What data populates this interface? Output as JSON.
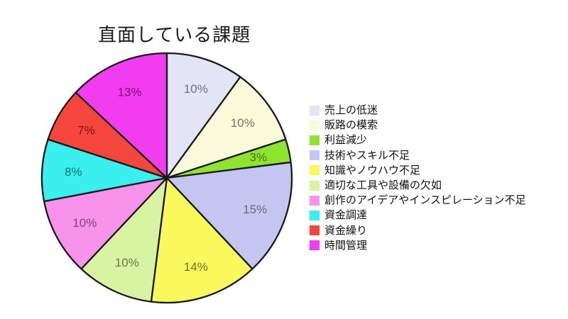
{
  "chart_data": {
    "type": "pie",
    "title": "直面している課題",
    "legend_position": "right",
    "start_angle": "top",
    "direction": "clockwise",
    "background_color": "#ffffff",
    "outline_color": "#1a1a1a",
    "slices": [
      {
        "label": "売上の低迷",
        "value": 10,
        "pct_label": "10%",
        "color": "#E4E4F7",
        "pct_color": "#71717C"
      },
      {
        "label": "販路の模索",
        "value": 10,
        "pct_label": "10%",
        "color": "#FAFADB",
        "pct_color": "#74746A"
      },
      {
        "label": "利益減少",
        "value": 3,
        "pct_label": "3%",
        "color": "#8EE42E",
        "pct_color": "#4A7214"
      },
      {
        "label": "技術やスキル不足",
        "value": 15,
        "pct_label": "15%",
        "color": "#C5C5F2",
        "pct_color": "#69697F"
      },
      {
        "label": "知識やノウハウ不足",
        "value": 14,
        "pct_label": "14%",
        "color": "#F9F95E",
        "pct_color": "#717125"
      },
      {
        "label": "適切な工具や設備の欠如",
        "value": 10,
        "pct_label": "10%",
        "color": "#D8F3A2",
        "pct_color": "#657B38"
      },
      {
        "label": "創作のアイデアやインスピレーション不足",
        "value": 10,
        "pct_label": "10%",
        "color": "#F893EC",
        "pct_color": "#82437C"
      },
      {
        "label": "資金調達",
        "value": 8,
        "pct_label": "8%",
        "color": "#3BEFEF",
        "pct_color": "#13706F"
      },
      {
        "label": "資金繰り",
        "value": 7,
        "pct_label": "7%",
        "color": "#F5463E",
        "pct_color": "#75150F"
      },
      {
        "label": "時間管理",
        "value": 13,
        "pct_label": "13%",
        "color": "#F23CEF",
        "pct_color": "#770C75"
      }
    ]
  }
}
